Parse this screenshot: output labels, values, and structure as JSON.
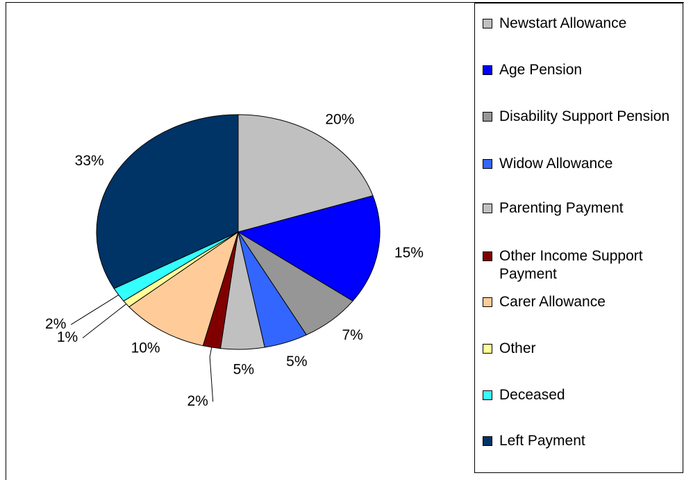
{
  "chart_data": {
    "type": "pie",
    "categories": [
      "Newstart Allowance",
      "Age Pension",
      "Disability Support Pension",
      "Widow Allowance",
      "Parenting Payment",
      "Other Income Support Payment",
      "Carer Allowance",
      "Other",
      "Deceased",
      "Left Payment"
    ],
    "values": [
      20,
      15,
      7,
      5,
      5,
      2,
      10,
      1,
      2,
      33
    ],
    "value_labels": [
      "20%",
      "15%",
      "7%",
      "5%",
      "5%",
      "2%",
      "10%",
      "1%",
      "2%",
      "33%"
    ],
    "colors": [
      "#c0c0c0",
      "#0000ff",
      "#969696",
      "#3366ff",
      "#c0c0c0",
      "#800000",
      "#ffcc99",
      "#ffff99",
      "#33ffff",
      "#003366"
    ],
    "legend": "right"
  }
}
